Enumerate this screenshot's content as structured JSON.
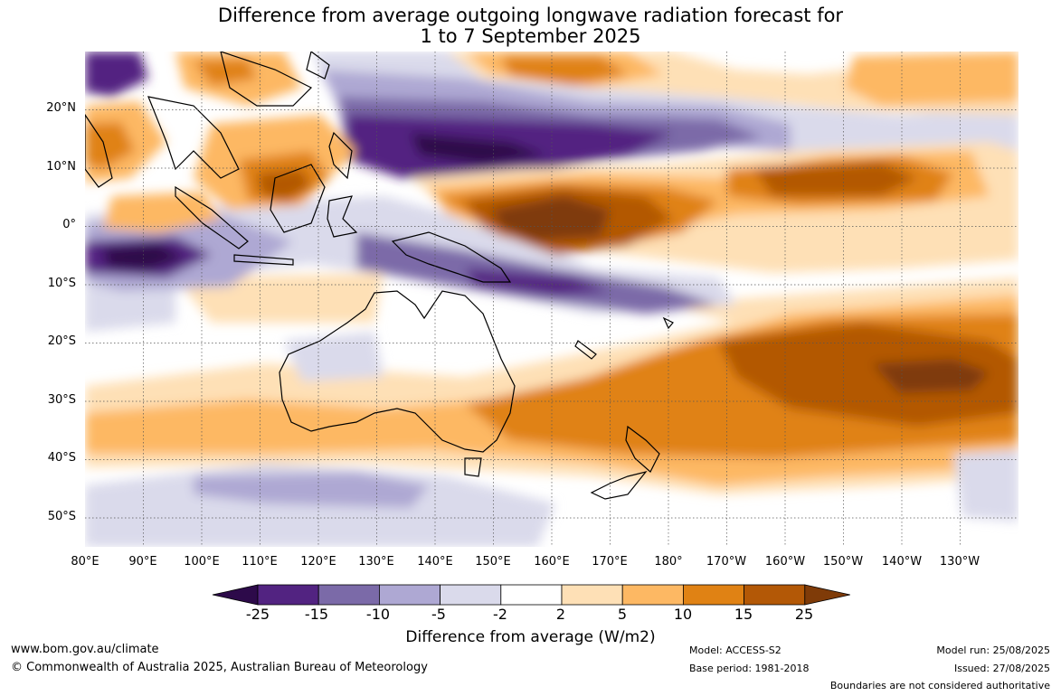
{
  "title": {
    "line1": "Difference from average outgoing longwave radiation forecast for",
    "line2": "1 to 7 September 2025"
  },
  "map": {
    "lat_labels": [
      "20°N",
      "10°N",
      "0°",
      "10°S",
      "20°S",
      "30°S",
      "40°S",
      "50°S"
    ],
    "lon_labels": [
      "80°E",
      "90°E",
      "100°E",
      "110°E",
      "120°E",
      "130°E",
      "140°E",
      "150°E",
      "160°E",
      "170°E",
      "180°",
      "170°W",
      "160°W",
      "150°W",
      "140°W",
      "130°W"
    ],
    "extent": {
      "lon_min": 80,
      "lon_max": 240,
      "lat_min": -55,
      "lat_max": 30
    }
  },
  "colorbar": {
    "ticks": [
      "-25",
      "-15",
      "-10",
      "-5",
      "-2",
      "2",
      "5",
      "10",
      "15",
      "25"
    ],
    "colors": [
      "#2d0a4a",
      "#522381",
      "#7b6aa8",
      "#aea8d3",
      "#dadaeb",
      "#ffffff",
      "#fee0b6",
      "#fdb863",
      "#e08214",
      "#b35806",
      "#7f3b08"
    ],
    "title": "Difference from average (W/m2)"
  },
  "footer": {
    "url": "www.bom.gov.au/climate",
    "copyright": "© Commonwealth of Australia 2025, Australian Bureau of Meteorology",
    "model": "Model: ACCESS-S2",
    "base_period": "Base period: 1981-2018",
    "model_run": "Model run: 25/08/2025",
    "issued": "Issued: 27/08/2025",
    "disclaimer": "Boundaries are not considered authoritative"
  }
}
